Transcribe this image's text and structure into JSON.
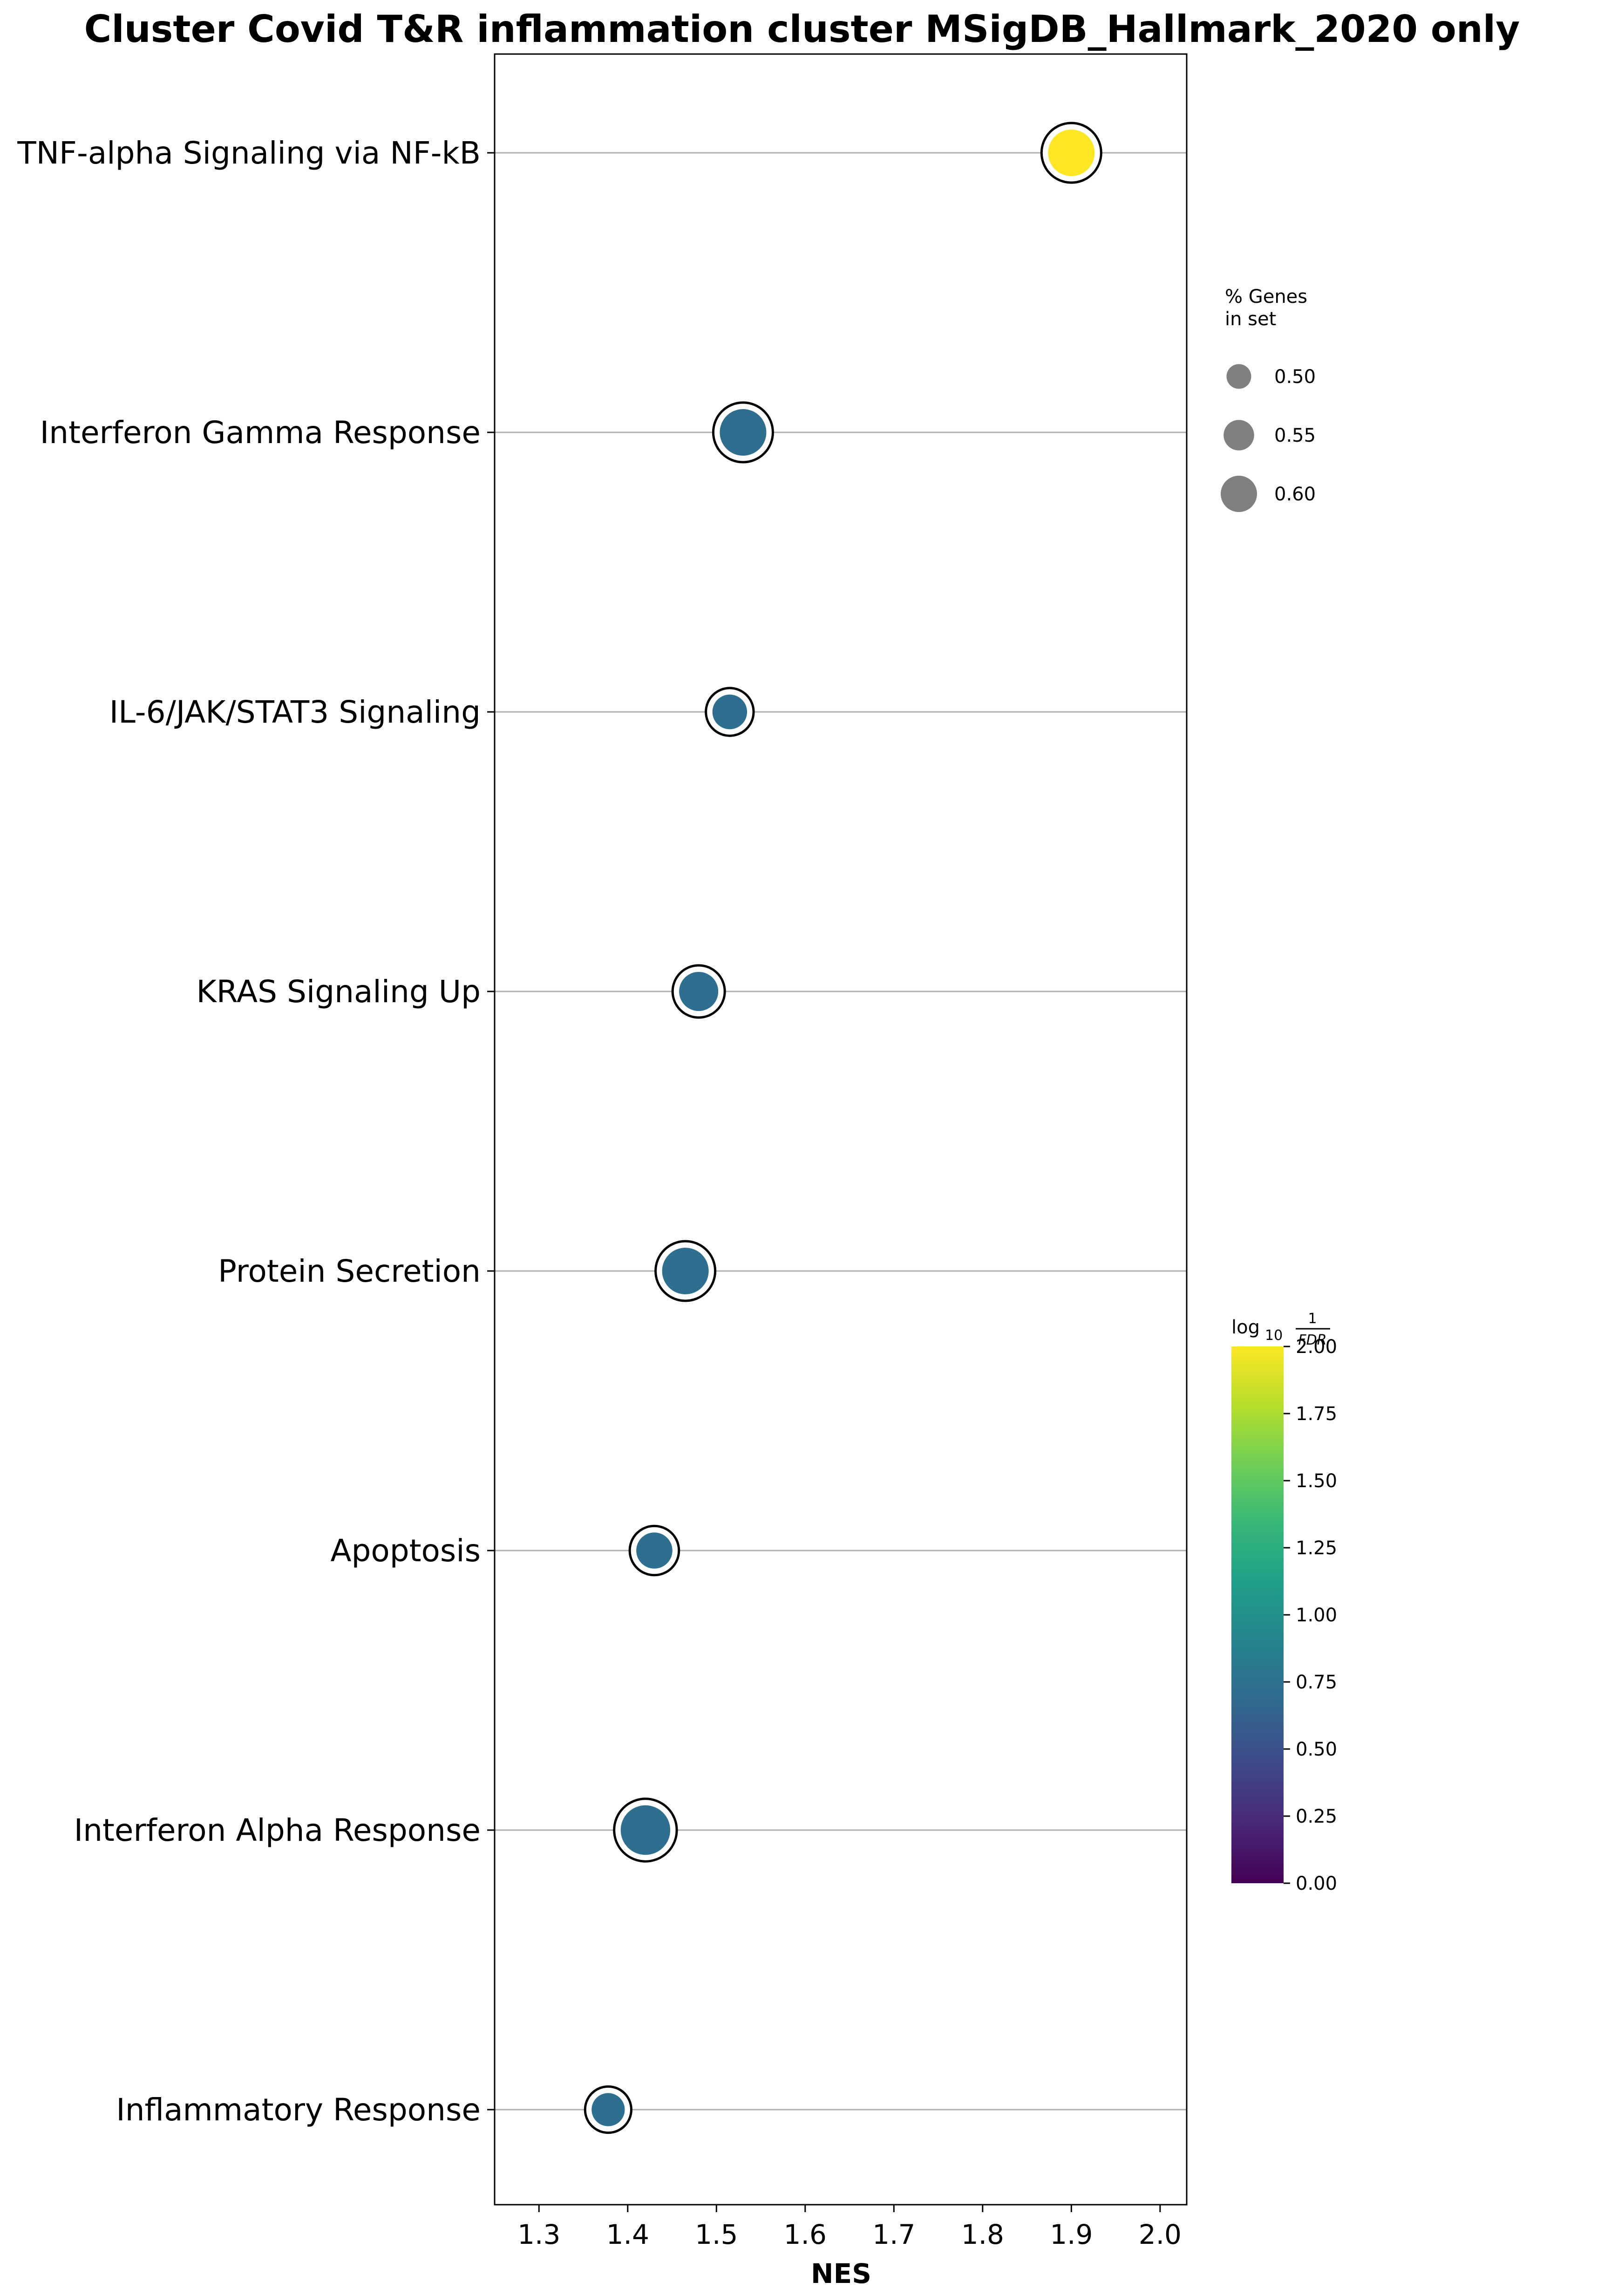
{
  "chart_data": {
    "type": "scatter",
    "title": "Cluster Covid T&R inflammation cluster MSigDB_Hallmark_2020 only",
    "xlabel": "NES",
    "ylabel": "",
    "xlim": [
      1.25,
      2.03
    ],
    "x_ticks": [
      "1.3",
      "1.4",
      "1.5",
      "1.6",
      "1.7",
      "1.8",
      "1.9",
      "2.0"
    ],
    "x_tick_values": [
      1.3,
      1.4,
      1.5,
      1.6,
      1.7,
      1.8,
      1.9,
      2.0
    ],
    "grid": "horizontal",
    "points": [
      {
        "term": "TNF-alpha Signaling via NF-kB",
        "nes": 1.9,
        "log10_inv_fdr": 2.0,
        "pct_genes": 0.6
      },
      {
        "term": "Interferon Gamma Response",
        "nes": 1.53,
        "log10_inv_fdr": 0.72,
        "pct_genes": 0.6
      },
      {
        "term": "IL-6/JAK/STAT3 Signaling",
        "nes": 1.515,
        "log10_inv_fdr": 0.72,
        "pct_genes": 0.52
      },
      {
        "term": "KRAS Signaling Up",
        "nes": 1.48,
        "log10_inv_fdr": 0.72,
        "pct_genes": 0.55
      },
      {
        "term": "Protein Secretion",
        "nes": 1.465,
        "log10_inv_fdr": 0.72,
        "pct_genes": 0.6
      },
      {
        "term": "Apoptosis",
        "nes": 1.43,
        "log10_inv_fdr": 0.72,
        "pct_genes": 0.53
      },
      {
        "term": "Interferon Alpha Response",
        "nes": 1.42,
        "log10_inv_fdr": 0.72,
        "pct_genes": 0.62
      },
      {
        "term": "Inflammatory Response",
        "nes": 1.378,
        "log10_inv_fdr": 0.72,
        "pct_genes": 0.51
      }
    ],
    "size_legend": {
      "title_line1": "% Genes",
      "title_line2": "in set",
      "entries": [
        {
          "label": "0.50",
          "value": 0.5
        },
        {
          "label": "0.55",
          "value": 0.55
        },
        {
          "label": "0.60",
          "value": 0.6
        }
      ]
    },
    "colorbar": {
      "label_base": "log",
      "label_sub": "10",
      "label_num": "1",
      "label_den": "FDR",
      "range": [
        0,
        2
      ],
      "colormap": "viridis",
      "ticks": [
        "0.00",
        "0.25",
        "0.50",
        "0.75",
        "1.00",
        "1.25",
        "1.50",
        "1.75",
        "2.00"
      ],
      "tick_values": [
        0,
        0.25,
        0.5,
        0.75,
        1.0,
        1.25,
        1.5,
        1.75,
        2.0
      ]
    },
    "colors": {
      "viridis": [
        "#440154",
        "#482878",
        "#3e4989",
        "#31688e",
        "#26828e",
        "#1f9e89",
        "#35b779",
        "#6ece58",
        "#b5de2b",
        "#fde725"
      ],
      "legend_marker": "#808080",
      "gridline": "#b0b0b0"
    }
  }
}
